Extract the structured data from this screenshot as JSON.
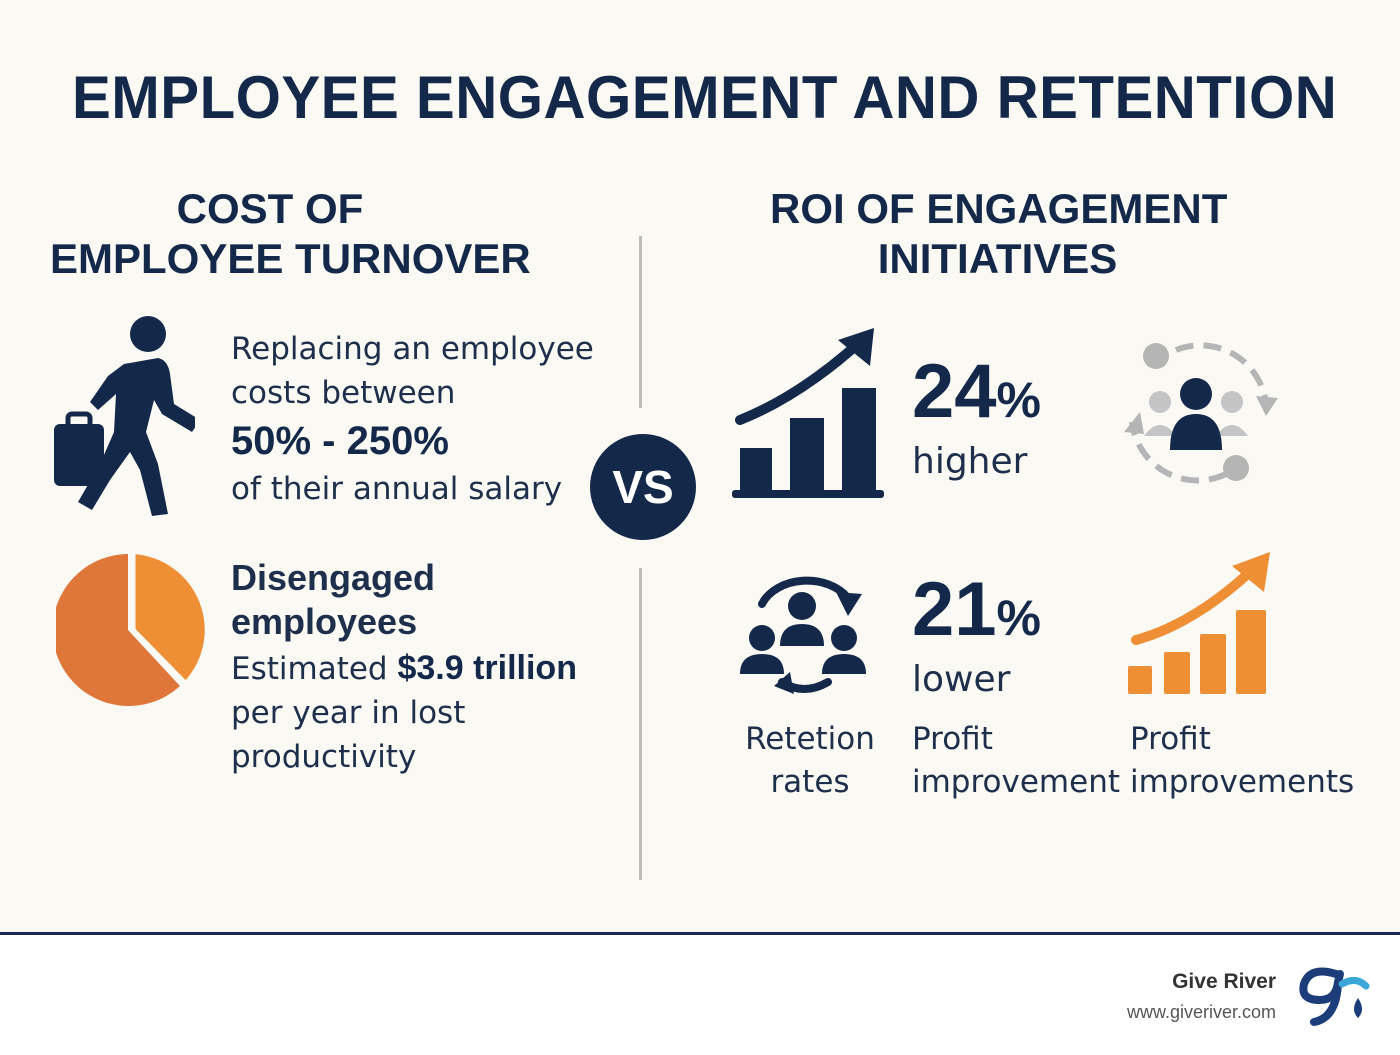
{
  "title": "EMPLOYEE ENGAGEMENT AND RETENTION",
  "left": {
    "heading_line1": "COST OF",
    "heading_line2": "EMPLOYEE TURNOVER",
    "turnover": {
      "icon": "walking-employee-briefcase-icon",
      "line1": "Replacing an employee",
      "line2": "costs between",
      "range": "50% - 250%",
      "line3": "of their annual salary"
    },
    "disengaged": {
      "icon": "pie-chart-icon",
      "heading_line1": "Disengaged",
      "heading_line2": "employees",
      "estimated": "Estimated",
      "amount": "$3.9 trillion",
      "line2": "per year in lost",
      "line3": "productivity"
    }
  },
  "vs_label": "VS",
  "right": {
    "heading_line1": "ROI OF ENGAGEMENT",
    "heading_line2": "INITIATIVES",
    "stat1": {
      "number": "24",
      "unit": "%",
      "word": "higher",
      "icon": "growth-bar-chart-icon"
    },
    "stat2": {
      "number": "21",
      "unit": "%",
      "word": "lower",
      "icon": "team-cycle-icon"
    },
    "icons": [
      "people-circle-icon",
      "orange-growth-chart-icon"
    ],
    "captions": [
      {
        "line1": "Retetion",
        "line2": "rates"
      },
      {
        "line1": "Profit",
        "line2": "improvement"
      },
      {
        "line1": "Profit",
        "line2": "improvements"
      }
    ]
  },
  "footer": {
    "brand": "Give River",
    "url": "www.giveriver.com",
    "logo": "give-river-logo"
  },
  "colors": {
    "navy": "#14294a",
    "orange": "#ef8f35",
    "grey_icon": "#b5b5b5",
    "background": "#faf9f4"
  }
}
